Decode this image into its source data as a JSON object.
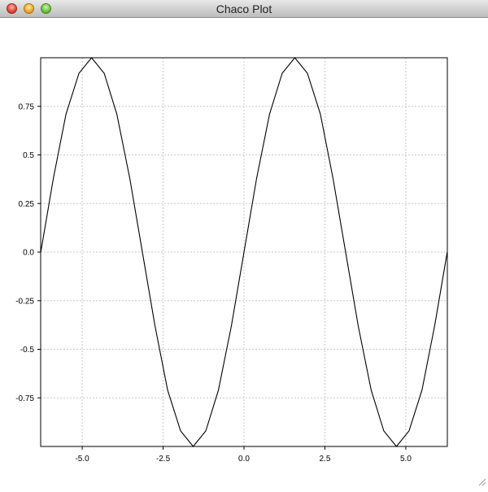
{
  "window": {
    "title": "Chaco Plot"
  },
  "icons": {
    "close": "close-icon",
    "minimize": "minimize-icon",
    "zoom": "zoom-icon",
    "resize": "resize-grip-icon"
  },
  "chart_data": {
    "type": "line",
    "title": "",
    "xlabel": "",
    "ylabel": "",
    "xlim": [
      -6.2832,
      6.2832
    ],
    "ylim": [
      -1.0,
      1.0
    ],
    "x_ticks": [
      -5.0,
      -2.5,
      0.0,
      2.5,
      5.0
    ],
    "x_tick_labels": [
      "-5.0",
      "-2.5",
      "0.0",
      "2.5",
      "5.0"
    ],
    "y_ticks": [
      -0.75,
      -0.5,
      -0.25,
      0.0,
      0.25,
      0.5,
      0.75
    ],
    "y_tick_labels": [
      "-0.75",
      "-0.5",
      "-0.25",
      "0.0",
      "0.25",
      "0.5",
      "0.75"
    ],
    "grid": true,
    "legend": "none",
    "line_color": "#000000",
    "grid_color": "#c8c8c8",
    "series": [
      {
        "x": [
          -6.28,
          -5.89,
          -5.5,
          -5.1,
          -4.71,
          -4.32,
          -3.93,
          -3.53,
          -3.14,
          -2.75,
          -2.36,
          -1.96,
          -1.57,
          -1.18,
          -0.79,
          -0.39,
          0.0,
          0.39,
          0.79,
          1.18,
          1.57,
          1.96,
          2.36,
          2.75,
          3.14,
          3.53,
          3.93,
          4.32,
          4.71,
          5.1,
          5.5,
          5.89,
          6.28
        ],
        "y": [
          0.0,
          0.38,
          0.71,
          0.92,
          1.0,
          0.92,
          0.71,
          0.38,
          0.0,
          -0.38,
          -0.71,
          -0.92,
          -1.0,
          -0.92,
          -0.71,
          -0.38,
          0.0,
          0.38,
          0.71,
          0.92,
          1.0,
          0.92,
          0.71,
          0.38,
          0.0,
          -0.38,
          -0.71,
          -0.92,
          -1.0,
          -0.92,
          -0.71,
          -0.38,
          0.0
        ]
      }
    ]
  }
}
